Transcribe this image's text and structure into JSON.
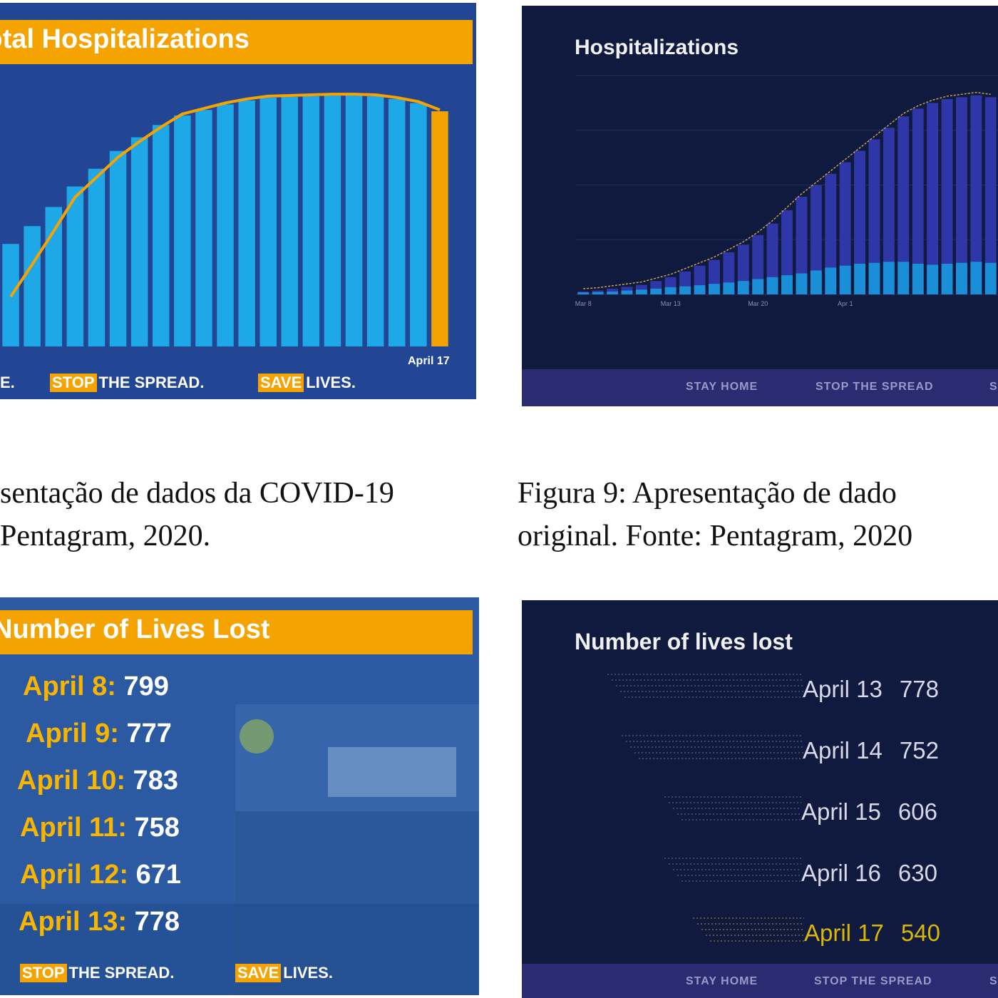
{
  "panel_top_left": {
    "title": "Total Hospitalizations",
    "chart_data": {
      "type": "bar",
      "title": "Total Hospitalizations",
      "values": [
        7500,
        8800,
        10200,
        11700,
        13000,
        14300,
        15300,
        16200,
        16900,
        17300,
        17700,
        18000,
        18200,
        18250,
        18300,
        18350,
        18350,
        18300,
        18100,
        17800,
        17200
      ],
      "highlight_last": true,
      "trend_line": true,
      "last_label": "April 17",
      "ylim": [
        0,
        19500
      ]
    },
    "footer": {
      "partial_word": "E.",
      "stop_tag": "STOP",
      "stop_rest": "THE SPREAD.",
      "save_tag": "SAVE",
      "save_rest": "LIVES."
    },
    "colors": {
      "bar": "#1ea8e8",
      "highlight": "#f5a300",
      "background": "#1f3f8e"
    }
  },
  "panel_top_right": {
    "title": "Hospitalizations",
    "chart_data": {
      "type": "bar",
      "title": "Hospitalizations",
      "x_ticks": [
        "Mar 8",
        "Mar 13",
        "Mar 20",
        "Apr 1"
      ],
      "series": [
        {
          "name": "total",
          "values": [
            150,
            200,
            300,
            400,
            500,
            700,
            900,
            1200,
            1500,
            1800,
            2200,
            2600,
            3100,
            3700,
            4400,
            5100,
            5700,
            6300,
            6900,
            7500,
            8100,
            8700,
            9300,
            9700,
            10000,
            10200,
            10300,
            10400,
            10300
          ]
        },
        {
          "name": "icu",
          "values": [
            100,
            120,
            150,
            200,
            250,
            300,
            380,
            420,
            480,
            550,
            620,
            700,
            800,
            900,
            1000,
            1100,
            1250,
            1400,
            1500,
            1600,
            1650,
            1700,
            1700,
            1600,
            1550,
            1600,
            1650,
            1700,
            1650
          ]
        }
      ],
      "ylim": [
        0,
        20000
      ]
    },
    "footer": [
      "STAY HOME",
      "STOP THE SPREAD",
      "S"
    ],
    "colors": {
      "total": "#2f36a8",
      "icu": "#1a8fd8",
      "background": "#0f1a3e",
      "line": "#c9a04a"
    }
  },
  "captions": {
    "left": [
      "sentação de dados da COVID-19",
      "Pentagram, 2020."
    ],
    "right": [
      "Figura 9:  Apresentação de dado",
      "original. Fonte: Pentagram, 2020"
    ]
  },
  "panel_bottom_left": {
    "title": "Number of Lives Lost",
    "rows": [
      {
        "date": "April 8:",
        "value": "799"
      },
      {
        "date": "April 9:",
        "value": "777"
      },
      {
        "date": "April 10:",
        "value": "783"
      },
      {
        "date": "April 11:",
        "value": "758"
      },
      {
        "date": "April 12:",
        "value": "671"
      },
      {
        "date": "April 13:",
        "value": "778"
      }
    ],
    "footer": {
      "stop_tag": "STOP",
      "stop_rest": "THE SPREAD.",
      "save_tag": "SAVE",
      "save_rest": "LIVES."
    }
  },
  "panel_bottom_right": {
    "title": "Number of lives lost",
    "rows": [
      {
        "date": "April 13",
        "value": "778"
      },
      {
        "date": "April 14",
        "value": "752"
      },
      {
        "date": "April 15",
        "value": "606"
      },
      {
        "date": "April 16",
        "value": "630"
      },
      {
        "date": "April 17",
        "value": "540"
      }
    ],
    "footer": [
      "STAY HOME",
      "STOP THE SPREAD",
      "S"
    ],
    "colors": {
      "text": "#d8d8e8",
      "highlight": "#d8b800",
      "background": "#0f1a3e"
    }
  }
}
